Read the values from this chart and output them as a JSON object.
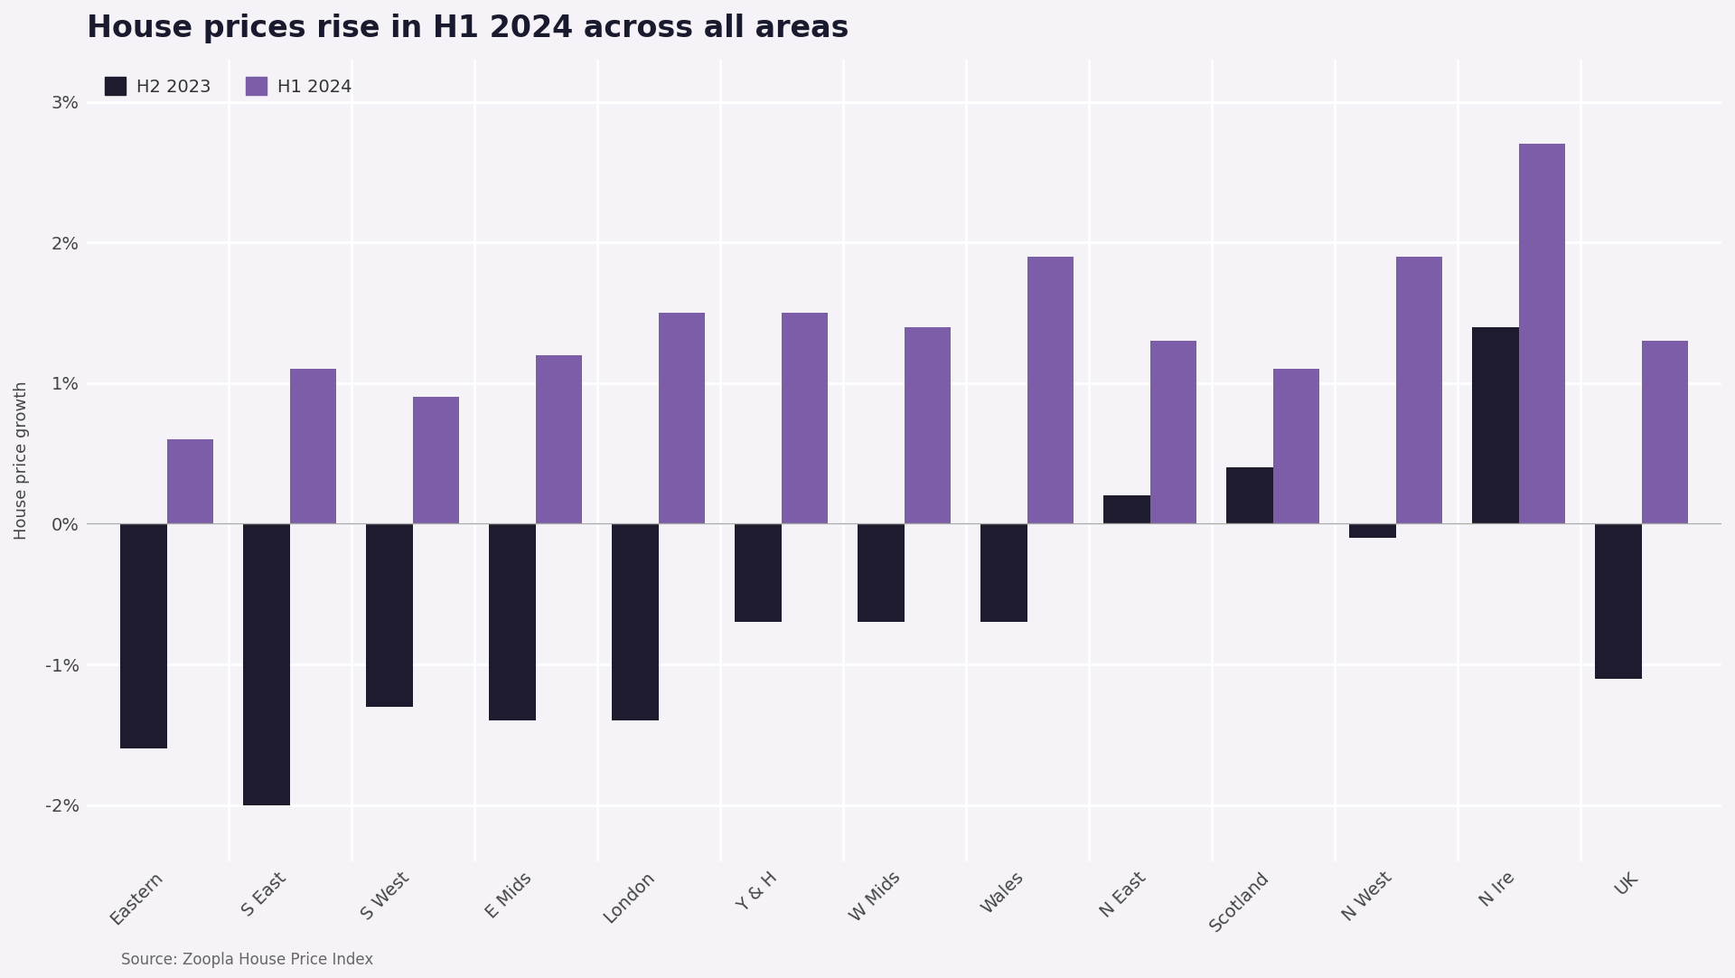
{
  "title": "House prices rise in H1 2024 across all areas",
  "ylabel": "House price growth",
  "source": "Source: Zoopla House Price Index",
  "categories": [
    "Eastern",
    "S East",
    "S West",
    "E Mids",
    "London",
    "Y & H",
    "W Mids",
    "Wales",
    "N East",
    "Scotland",
    "N West",
    "N Ire",
    "UK"
  ],
  "h2_2023": [
    -1.6,
    -2.0,
    -1.3,
    -1.4,
    -1.4,
    -0.7,
    -0.7,
    -0.7,
    0.2,
    0.4,
    -0.1,
    1.4,
    -1.1
  ],
  "h1_2024": [
    0.6,
    1.1,
    0.9,
    1.2,
    1.5,
    1.5,
    1.4,
    1.9,
    1.3,
    1.1,
    1.9,
    2.7,
    1.3
  ],
  "color_h2": "#1e1b2e",
  "color_h1": "#7b5ea7",
  "background_color": "#f5f3f7",
  "ylim_min": -2.4,
  "ylim_max": 3.3,
  "yticks": [
    -2,
    -1,
    0,
    1,
    2,
    3
  ],
  "ytick_labels": [
    "-2%",
    "-1%",
    "0%",
    "1%",
    "2%",
    "3%"
  ],
  "legend_h2": "H2 2023",
  "legend_h1": "H1 2024",
  "title_fontsize": 24,
  "axis_label_fontsize": 13,
  "tick_fontsize": 14,
  "legend_fontsize": 14,
  "source_fontsize": 12,
  "bar_width": 0.38
}
